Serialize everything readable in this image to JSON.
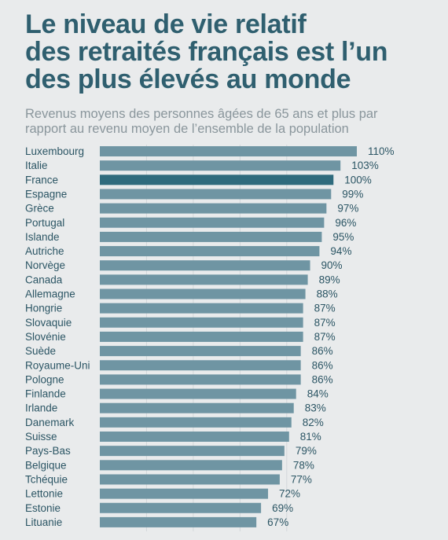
{
  "header": {
    "title_lines": [
      "Le niveau de vie relatif",
      "des retraités français est l’un",
      "des plus élevés au monde"
    ],
    "subtitle_lines": [
      "Revenus moyens des personnes âgées de 65 ans et plus par",
      "rapport au revenu moyen de l’ensemble de la population"
    ]
  },
  "colors": {
    "bar": "#6f95a3",
    "highlight": "#2f6b7d",
    "grid": "#d2d7da",
    "text": "#2b5564"
  },
  "chart_data": {
    "type": "bar",
    "orientation": "horizontal",
    "title": "Le niveau de vie relatif des retraités français est l’un des plus élevés au monde",
    "subtitle": "Revenus moyens des personnes âgées de 65 ans et plus par rapport au revenu moyen de l’ensemble de la population",
    "categories": [
      "Luxembourg",
      "Italie",
      "France",
      "Espagne",
      "Grèce",
      "Portugal",
      "Islande",
      "Autriche",
      "Norvège",
      "Canada",
      "Allemagne",
      "Hongrie",
      "Slovaquie",
      "Slovénie",
      "Suède",
      "Royaume-Uni",
      "Pologne",
      "Finlande",
      "Irlande",
      "Danemark",
      "Suisse",
      "Pays-Bas",
      "Belgique",
      "Tchéquie",
      "Lettonie",
      "Estonie",
      "Lituanie"
    ],
    "values": [
      110,
      103,
      100,
      99,
      97,
      96,
      95,
      94,
      90,
      89,
      88,
      87,
      87,
      87,
      86,
      86,
      86,
      84,
      83,
      82,
      81,
      79,
      78,
      77,
      72,
      69,
      67
    ],
    "labels": [
      "110%",
      "103%",
      "100%",
      "99%",
      "97%",
      "96%",
      "95%",
      "94%",
      "90%",
      "89%",
      "88%",
      "87%",
      "87%",
      "87%",
      "86%",
      "86%",
      "86%",
      "84%",
      "83%",
      "82%",
      "81%",
      "79%",
      "78%",
      "77%",
      "72%",
      "69%",
      "67%"
    ],
    "highlight": "France",
    "xlim": [
      0,
      110
    ],
    "grid": true,
    "gridlines_x": [
      20,
      40,
      60,
      80
    ]
  }
}
